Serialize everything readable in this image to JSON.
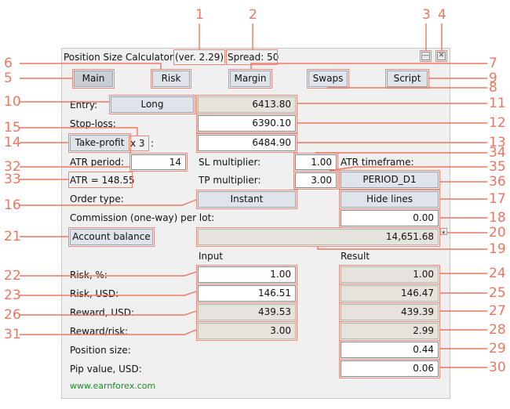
{
  "window": {
    "title": "Position Size Calculator",
    "version": "(ver. 2.29)",
    "spread": "Spread: 50",
    "minimize_glyph": "—",
    "close_glyph": "✕"
  },
  "tabs": [
    "Main",
    "Risk",
    "Margin",
    "Swaps",
    "Script"
  ],
  "main": {
    "entry_label": "Entry:",
    "entry_direction": "Long",
    "entry_value": "6413.80",
    "stoploss_label": "Stop-loss:",
    "stoploss_value": "6390.10",
    "takeprofit_button": "Take-profit",
    "tp_multiplier_tag": "x 3",
    "tp_colon": ":",
    "takeprofit_value": "6484.90",
    "atr_period_label": "ATR period:",
    "atr_period_value": "14",
    "sl_multiplier_label": "SL multiplier:",
    "sl_multiplier_value": "1.00",
    "atr_timeframe_label": "ATR timeframe:",
    "atr_value_text": "ATR = 148.55",
    "tp_multiplier_label": "TP multiplier:",
    "tp_multiplier_value": "3.00",
    "atr_timeframe_value": "PERIOD_D1",
    "order_type_label": "Order type:",
    "order_type_value": "Instant",
    "hide_lines_button": "Hide lines",
    "commission_label": "Commission (one-way) per lot:",
    "commission_value": "0.00",
    "account_button": "Account balance",
    "account_value": "14,651.68",
    "account_star": "*",
    "input_header": "Input",
    "result_header": "Result",
    "rows": [
      {
        "label": "Risk, %:",
        "input": "1.00",
        "result": "1.00"
      },
      {
        "label": "Risk, USD:",
        "input": "146.51",
        "result": "146.47"
      },
      {
        "label": "Reward, USD:",
        "input": "439.53",
        "result": "439.39"
      },
      {
        "label": "Reward/risk:",
        "input": "3.00",
        "result": "2.99"
      },
      {
        "label": "Position size:",
        "input": "",
        "result": "0.44"
      },
      {
        "label": "Pip value, USD:",
        "input": "",
        "result": "0.06"
      }
    ],
    "footer_link": "www.earnforex.com"
  },
  "callouts": [
    "1",
    "2",
    "3",
    "4",
    "5",
    "6",
    "7",
    "8",
    "9",
    "10",
    "11",
    "12",
    "13",
    "14",
    "15",
    "16",
    "17",
    "18",
    "19",
    "20",
    "21",
    "22",
    "23",
    "24",
    "25",
    "26",
    "27",
    "28",
    "29",
    "30",
    "31",
    "32",
    "33",
    "34",
    "35",
    "36"
  ],
  "colors": {
    "callout": "#f07560",
    "panel_bg": "#f0f0f0",
    "button_bg": "#dfe3ea",
    "readonly_bg": "#e6e3dc",
    "link": "#1d8a2a"
  }
}
